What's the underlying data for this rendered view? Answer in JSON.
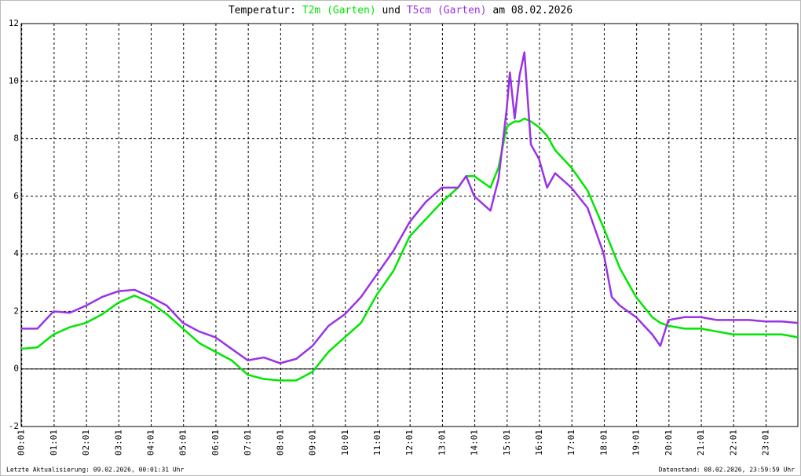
{
  "chart_data": {
    "type": "line",
    "title_prefix": "Temperatur:",
    "title_and": "und",
    "title_suffix": "am 08.02.2026",
    "footer_left": "Letzte Aktualisierung: 09.02.2026, 00:01:31 Uhr",
    "footer_right": "Datenstand: 08.02.2026, 23:59:59 Uhr",
    "x": [
      0,
      0.5,
      1,
      1.5,
      2,
      2.5,
      3,
      3.5,
      4,
      4.5,
      5,
      5.5,
      6,
      6.5,
      7,
      7.5,
      8,
      8.5,
      9,
      9.5,
      10,
      10.5,
      11,
      11.5,
      12,
      12.5,
      13,
      13.5,
      13.75,
      14,
      14.5,
      14.75,
      15,
      15.1,
      15.25,
      15.4,
      15.55,
      15.75,
      16,
      16.25,
      16.5,
      17,
      17.5,
      18,
      18.25,
      18.5,
      19,
      19.5,
      19.75,
      20,
      20.5,
      21,
      21.5,
      22,
      22.5,
      23,
      23.5,
      24
    ],
    "series": [
      {
        "name": "T2m (Garten)",
        "color": "#00e600",
        "values": [
          0.7,
          0.75,
          1.2,
          1.45,
          1.6,
          1.9,
          2.3,
          2.55,
          2.3,
          1.9,
          1.4,
          0.9,
          0.6,
          0.3,
          -0.2,
          -0.35,
          -0.4,
          -0.4,
          -0.1,
          0.6,
          1.1,
          1.6,
          2.6,
          3.4,
          4.6,
          5.2,
          5.8,
          6.3,
          6.7,
          6.7,
          6.3,
          7.0,
          8.4,
          8.5,
          8.6,
          8.6,
          8.7,
          8.6,
          8.4,
          8.1,
          7.6,
          7.0,
          6.2,
          4.9,
          4.2,
          3.5,
          2.5,
          1.8,
          1.6,
          1.5,
          1.4,
          1.4,
          1.3,
          1.2,
          1.2,
          1.2,
          1.2,
          1.1
        ]
      },
      {
        "name": "T5cm (Garten)",
        "color": "#9933e6",
        "values": [
          1.4,
          1.4,
          2.0,
          1.95,
          2.2,
          2.5,
          2.7,
          2.75,
          2.5,
          2.2,
          1.6,
          1.3,
          1.1,
          0.7,
          0.3,
          0.4,
          0.2,
          0.35,
          0.8,
          1.5,
          1.9,
          2.5,
          3.3,
          4.1,
          5.1,
          5.8,
          6.3,
          6.3,
          6.7,
          6.0,
          5.5,
          6.6,
          9.0,
          10.3,
          8.7,
          10.2,
          11.0,
          7.8,
          7.3,
          6.3,
          6.8,
          6.3,
          5.6,
          4.0,
          2.5,
          2.2,
          1.8,
          1.2,
          0.8,
          1.7,
          1.8,
          1.8,
          1.7,
          1.7,
          1.7,
          1.65,
          1.65,
          1.6
        ]
      }
    ],
    "xlim": [
      0,
      24
    ],
    "xticks": [
      {
        "value": 0.0167,
        "label": "00:01"
      },
      {
        "value": 1.0167,
        "label": "01:01"
      },
      {
        "value": 2.0167,
        "label": "02:01"
      },
      {
        "value": 3.0167,
        "label": "03:01"
      },
      {
        "value": 4.0167,
        "label": "04:01"
      },
      {
        "value": 5.0167,
        "label": "05:01"
      },
      {
        "value": 6.0167,
        "label": "06:01"
      },
      {
        "value": 7.0167,
        "label": "07:01"
      },
      {
        "value": 8.0167,
        "label": "08:01"
      },
      {
        "value": 9.0167,
        "label": "09:01"
      },
      {
        "value": 10.0167,
        "label": "10:01"
      },
      {
        "value": 11.0167,
        "label": "11:01"
      },
      {
        "value": 12.0167,
        "label": "12:01"
      },
      {
        "value": 13.0167,
        "label": "13:01"
      },
      {
        "value": 14.0167,
        "label": "14:01"
      },
      {
        "value": 15.0167,
        "label": "15:01"
      },
      {
        "value": 16.0167,
        "label": "16:01"
      },
      {
        "value": 17.0167,
        "label": "17:01"
      },
      {
        "value": 18.0167,
        "label": "18:01"
      },
      {
        "value": 19.0167,
        "label": "19:01"
      },
      {
        "value": 20.0167,
        "label": "20:01"
      },
      {
        "value": 21.0167,
        "label": "21:01"
      },
      {
        "value": 22.0167,
        "label": "22:01"
      },
      {
        "value": 23.0167,
        "label": "23:01"
      }
    ],
    "ylim": [
      -2,
      12
    ],
    "yticks": [
      -2,
      0,
      2,
      4,
      6,
      8,
      10,
      12
    ],
    "grid": true
  }
}
